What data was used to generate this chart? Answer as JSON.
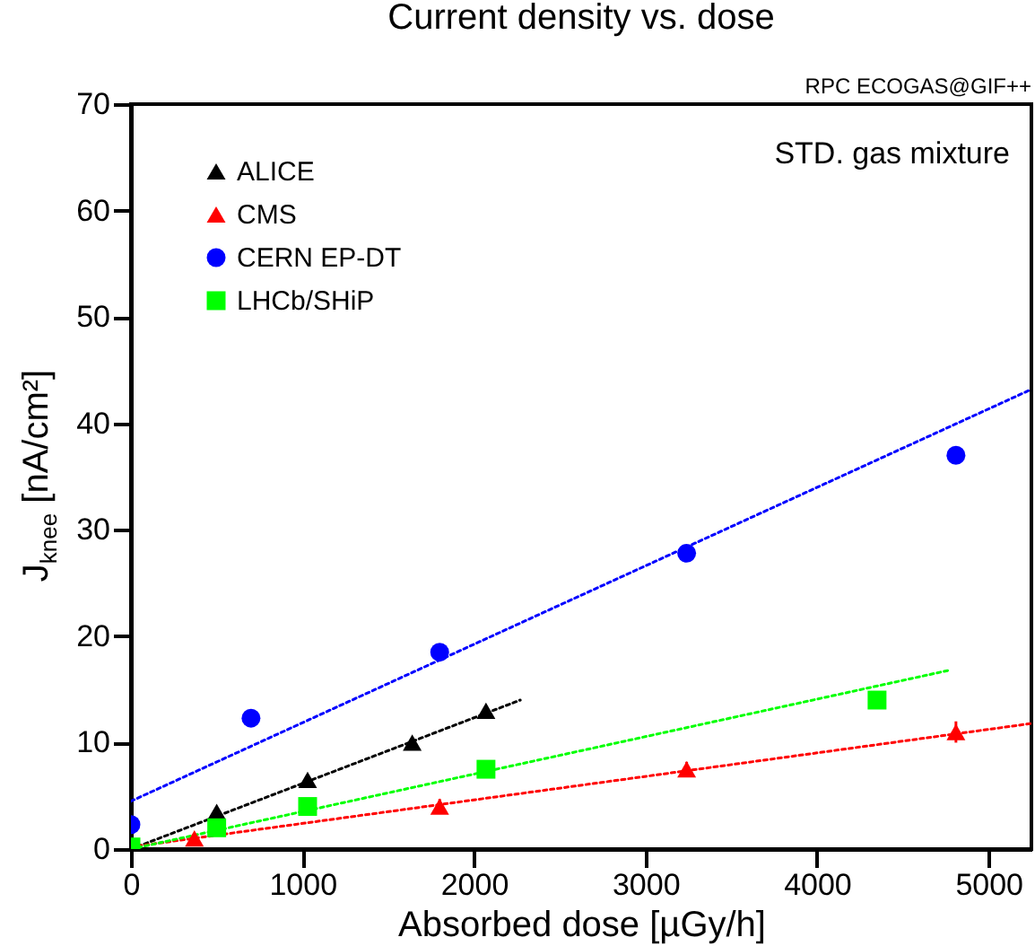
{
  "chart_data": {
    "type": "scatter",
    "title": "Current density vs. dose",
    "xlabel": "Absorbed dose [µGy/h]",
    "ylabel": "J$_{knee}$ [nA/cm²]",
    "annotations": [
      "STD. gas mixture",
      "RPC ECOGAS@GIF++"
    ],
    "xlim": [
      0,
      5250
    ],
    "xticks": [
      0,
      1000,
      2000,
      3000,
      4000,
      5000
    ],
    "ylim": [
      0,
      70
    ],
    "yticks": [
      0,
      10,
      20,
      30,
      40,
      50,
      60,
      70
    ],
    "grid": false,
    "legend": "top left",
    "line_style": "dotted",
    "series": [
      {
        "name": "ALICE",
        "color": "#000000",
        "marker": "triangle",
        "x": [
          500,
          1030,
          1640,
          2070
        ],
        "values": [
          3.5,
          6.5,
          10,
          13
        ]
      },
      {
        "name": "CMS",
        "color": "#ff0000",
        "marker": "triangle",
        "x": [
          370,
          1800,
          3240,
          4810
        ],
        "values": [
          1,
          4,
          7.5,
          11
        ],
        "errors": [
          null,
          0.7,
          0.7,
          1
        ]
      },
      {
        "name": "CERN EP-DT",
        "color": "#0000ff",
        "marker": "circle",
        "x": [
          0,
          700,
          1800,
          3240,
          4810
        ],
        "values": [
          2.3,
          12.3,
          18.5,
          27.8,
          37
        ]
      },
      {
        "name": "LHCb/SHiP",
        "color": "#00ff00",
        "marker": "square",
        "x": [
          0,
          500,
          1030,
          2070,
          4350
        ],
        "values": [
          0.2,
          2,
          4,
          7.5,
          14
        ]
      },
      {
        "type": "line",
        "color": "#000000",
        "marker": "none",
        "x": [
          0,
          2270
        ],
        "values": [
          0,
          14
        ]
      },
      {
        "type": "line",
        "color": "#ff0000",
        "marker": "none",
        "x": [
          0,
          5250
        ],
        "values": [
          0.2,
          11.8
        ]
      },
      {
        "type": "line",
        "color": "#0000ff",
        "marker": "none",
        "x": [
          0,
          5250
        ],
        "values": [
          4.5,
          43.2
        ]
      },
      {
        "type": "line",
        "color": "#00ff00",
        "marker": "none",
        "x": [
          0,
          4770
        ],
        "values": [
          0,
          16.8
        ]
      }
    ]
  }
}
